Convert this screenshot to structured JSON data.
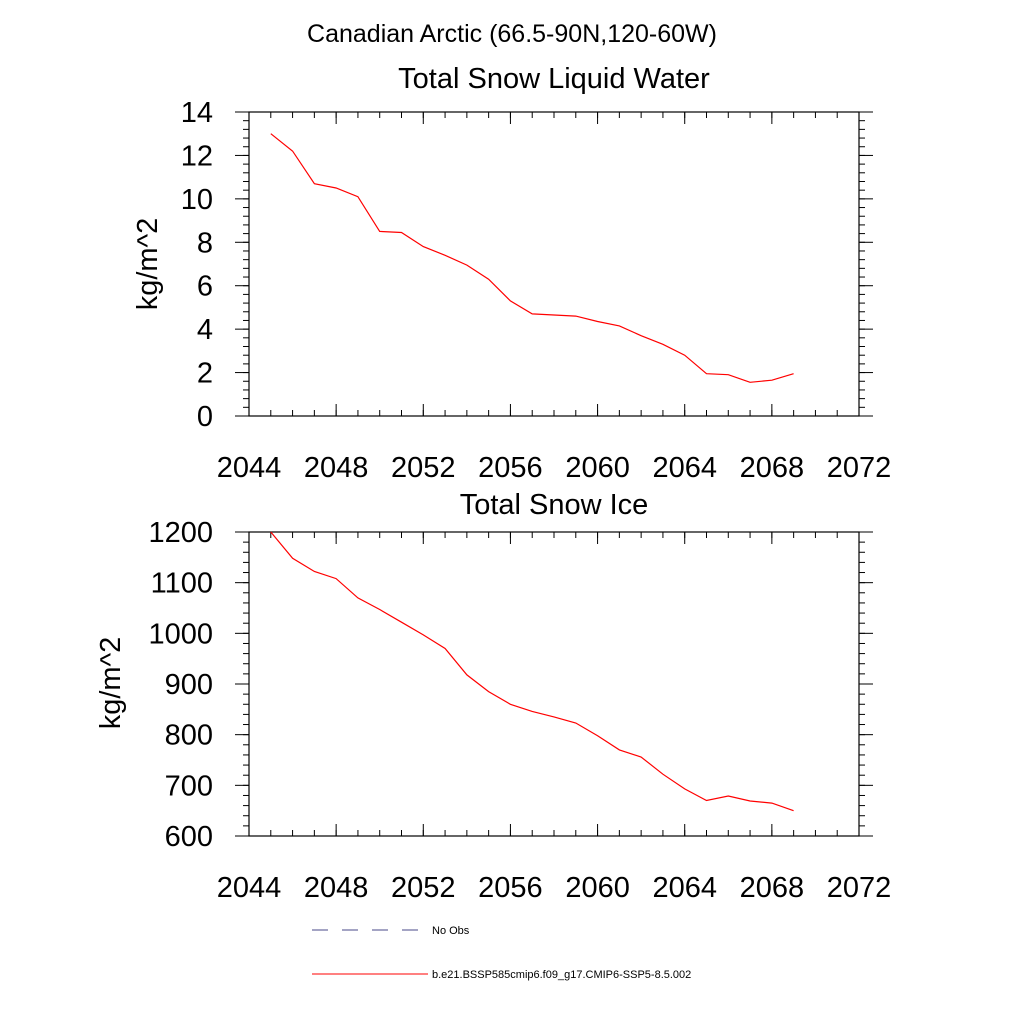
{
  "main_title": "Canadian Arctic (66.5-90N,120-60W)",
  "chart_data": [
    {
      "type": "line",
      "title": "Total Snow Liquid Water",
      "xlabel": "",
      "ylabel": "kg/m^2",
      "xlim": [
        2044,
        2072
      ],
      "ylim": [
        0,
        14
      ],
      "xticks": [
        2044,
        2048,
        2052,
        2056,
        2060,
        2064,
        2068,
        2072
      ],
      "yticks": [
        0,
        2,
        4,
        6,
        8,
        10,
        12,
        14
      ],
      "grid": false,
      "series": [
        {
          "name": "b.e21.BSSP585cmip6.f09_g17.CMIP6-SSP5-8.5.002",
          "color": "#ff0000",
          "x": [
            2045,
            2046,
            2047,
            2048,
            2049,
            2050,
            2051,
            2052,
            2053,
            2054,
            2055,
            2056,
            2057,
            2058,
            2059,
            2060,
            2061,
            2062,
            2063,
            2064,
            2065,
            2066,
            2067,
            2068,
            2069
          ],
          "y": [
            13.0,
            12.2,
            10.7,
            10.5,
            10.1,
            8.5,
            8.45,
            7.8,
            7.4,
            6.95,
            6.3,
            5.3,
            4.7,
            4.65,
            4.6,
            4.35,
            4.15,
            3.7,
            3.3,
            2.8,
            1.95,
            1.9,
            1.55,
            1.65,
            1.95
          ]
        }
      ]
    },
    {
      "type": "line",
      "title": "Total Snow Ice",
      "xlabel": "",
      "ylabel": "kg/m^2",
      "xlim": [
        2044,
        2072
      ],
      "ylim": [
        600,
        1200
      ],
      "xticks": [
        2044,
        2048,
        2052,
        2056,
        2060,
        2064,
        2068,
        2072
      ],
      "yticks": [
        600,
        700,
        800,
        900,
        1000,
        1100,
        1200
      ],
      "grid": false,
      "series": [
        {
          "name": "b.e21.BSSP585cmip6.f09_g17.CMIP6-SSP5-8.5.002",
          "color": "#ff0000",
          "x": [
            2045,
            2046,
            2047,
            2048,
            2049,
            2050,
            2051,
            2052,
            2053,
            2054,
            2055,
            2056,
            2057,
            2058,
            2059,
            2060,
            2061,
            2062,
            2063,
            2064,
            2065,
            2066,
            2067,
            2068,
            2069
          ],
          "y": [
            1200,
            1148,
            1122,
            1108,
            1070,
            1047,
            1022,
            997,
            970,
            918,
            885,
            860,
            846,
            835,
            823,
            798,
            770,
            756,
            722,
            693,
            670,
            679,
            669,
            665,
            650
          ]
        }
      ]
    }
  ],
  "legend": {
    "placement": "bottom",
    "items": [
      {
        "label": "No Obs",
        "style": "dashed",
        "color": "#4a4a8a"
      },
      {
        "label": "b.e21.BSSP585cmip6.f09_g17.CMIP6-SSP5-8.5.002",
        "style": "solid",
        "color": "#ff0000"
      }
    ]
  }
}
